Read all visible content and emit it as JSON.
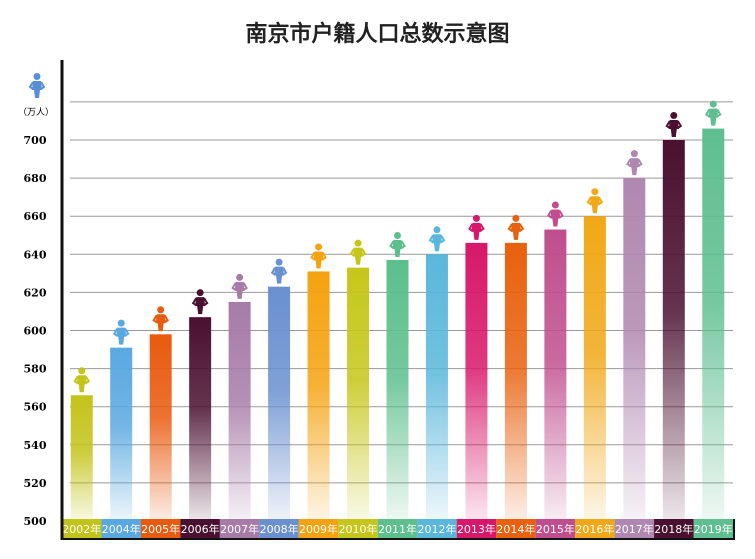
{
  "chart_data": {
    "type": "bar",
    "title": "南京市户籍人口总数示意图",
    "ylabel": "（万人）",
    "ylim": [
      500,
      720
    ],
    "yticks": [
      500,
      520,
      540,
      560,
      580,
      600,
      620,
      640,
      660,
      680,
      700
    ],
    "grid": true,
    "categories": [
      "2002年",
      "2004年",
      "2005年",
      "2006年",
      "2007年",
      "2008年",
      "2009年",
      "2010年",
      "2011年",
      "2012年",
      "2013年",
      "2014年",
      "2015年",
      "2016年",
      "2017年",
      "2018年",
      "2019年"
    ],
    "values": [
      566,
      591,
      598,
      607,
      615,
      623,
      631,
      633,
      637,
      640,
      646,
      646,
      653,
      660,
      680,
      700,
      706
    ],
    "colors": [
      "#c3c41a",
      "#5aa8e0",
      "#e85a0e",
      "#4a1030",
      "#a77ba8",
      "#6a90d0",
      "#f5a20f",
      "#c6c61a",
      "#5cbf8c",
      "#5ab7dc",
      "#d8176a",
      "#e8610e",
      "#c04e8e",
      "#f0a817",
      "#b087b0",
      "#4a1030",
      "#5fbf90"
    ]
  }
}
